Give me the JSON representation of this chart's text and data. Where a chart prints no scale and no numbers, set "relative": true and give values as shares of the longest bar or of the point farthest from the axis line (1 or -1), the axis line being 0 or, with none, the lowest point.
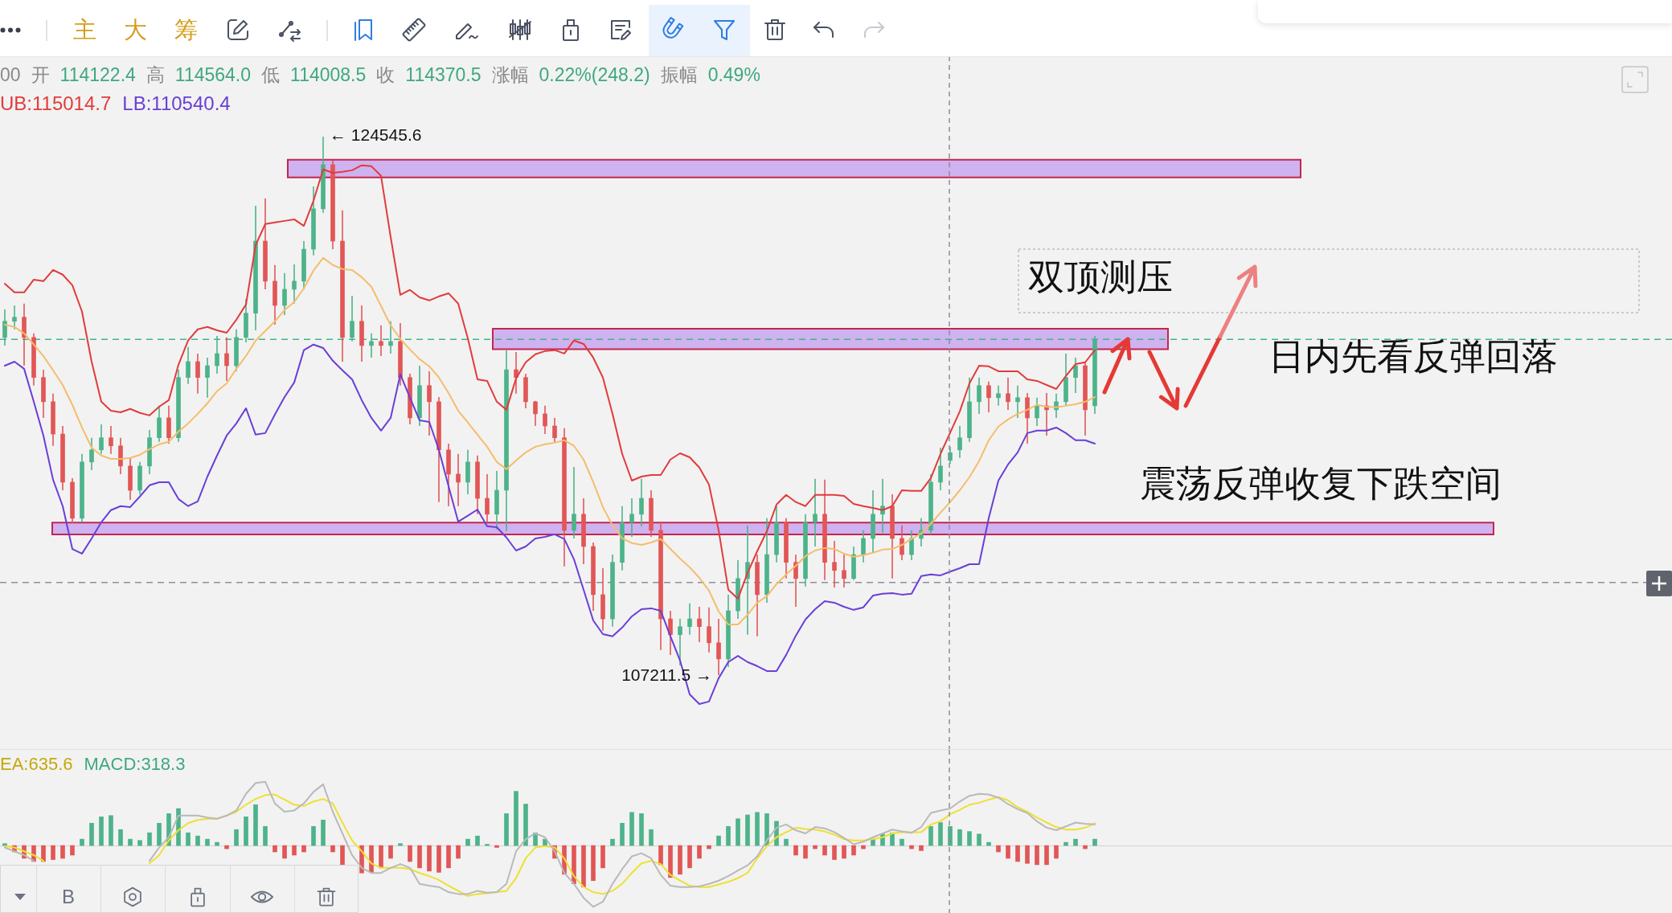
{
  "chart_data": [
    {
      "type": "candlestick",
      "subtitle": "00 开 114122.4 高 114564.0 低 114008.5 收 114370.5 涨幅 0.22%(248.2) 振幅 0.49%",
      "categories": [
        null,
        null,
        null,
        null,
        null,
        null,
        null,
        null,
        null,
        null,
        null,
        null,
        null,
        null,
        null,
        null,
        null,
        null,
        null,
        null,
        null,
        null,
        null,
        null,
        null,
        null,
        null,
        null,
        null,
        null,
        null,
        null,
        null,
        null,
        null,
        null,
        null,
        null,
        null,
        null,
        null,
        null,
        null,
        null,
        null,
        null,
        null,
        null,
        null,
        null,
        null,
        null,
        null,
        null,
        null,
        null,
        null,
        null,
        null,
        null,
        null,
        null,
        null,
        null,
        null,
        null,
        null,
        null,
        null,
        null,
        null,
        null,
        null,
        null,
        null,
        null,
        null,
        null,
        null,
        null,
        null,
        null,
        null,
        null,
        null,
        null,
        null,
        null,
        null,
        null,
        null,
        null,
        null,
        null,
        null,
        null,
        null,
        null,
        null,
        null,
        null,
        null,
        null,
        null,
        null,
        null,
        null,
        null,
        null,
        null,
        null,
        null,
        null,
        null
      ],
      "ylim": [
        104830,
        127130
      ],
      "tick_labels": false,
      "series": [
        {
          "ohlc": [
            [
              118080,
              118980,
              117820,
              118600
            ],
            [
              118600,
              119110,
              118340,
              118730
            ],
            [
              118730,
              119170,
              117170,
              118080
            ],
            [
              118080,
              118210,
              116530,
              116790
            ],
            [
              116790,
              117040,
              115490,
              116010
            ],
            [
              116010,
              116270,
              114590,
              114970
            ],
            [
              114970,
              115230,
              113160,
              113420
            ],
            [
              113420,
              113550,
              112100,
              112260
            ],
            [
              112260,
              114330,
              112130,
              114070
            ],
            [
              114070,
              114850,
              113810,
              114460
            ],
            [
              114460,
              115280,
              114330,
              114850
            ],
            [
              114850,
              115230,
              114330,
              114590
            ],
            [
              114590,
              114850,
              113680,
              113940
            ],
            [
              113940,
              114200,
              112850,
              113160
            ],
            [
              113160,
              114070,
              113030,
              113940
            ],
            [
              113940,
              115100,
              113680,
              114850
            ],
            [
              114850,
              115880,
              114720,
              115490
            ],
            [
              115490,
              115880,
              114660,
              114850
            ],
            [
              114850,
              117040,
              114720,
              116790
            ],
            [
              116790,
              117770,
              116580,
              117300
            ],
            [
              117300,
              117560,
              116270,
              116790
            ],
            [
              116790,
              117430,
              116140,
              117170
            ],
            [
              117170,
              118130,
              116910,
              117560
            ],
            [
              117560,
              118080,
              116680,
              117170
            ],
            [
              117170,
              118340,
              116990,
              118080
            ],
            [
              118080,
              119320,
              117920,
              118860
            ],
            [
              118860,
              122320,
              118310,
              121180
            ],
            [
              121180,
              122550,
              119630,
              119890
            ],
            [
              119890,
              120410,
              118490,
              119110
            ],
            [
              119110,
              120150,
              118800,
              119630
            ],
            [
              119630,
              120430,
              119170,
              119890
            ],
            [
              119890,
              121180,
              119630,
              120920
            ],
            [
              120920,
              122940,
              120720,
              122220
            ],
            [
              122220,
              124545.6,
              122090,
              123640
            ],
            [
              123640,
              123770,
              120920,
              121180
            ],
            [
              121180,
              122170,
              117300,
              118080
            ],
            [
              118080,
              119420,
              117950,
              118600
            ],
            [
              118600,
              119110,
              117300,
              117820
            ],
            [
              117820,
              118210,
              117430,
              117950
            ],
            [
              117950,
              118470,
              117480,
              117820
            ],
            [
              117820,
              118600,
              117560,
              117950
            ],
            [
              117950,
              118540,
              116530,
              116790
            ],
            [
              116790,
              116910,
              115280,
              115490
            ],
            [
              115490,
              117170,
              115230,
              116530
            ],
            [
              116530,
              116990,
              114920,
              116010
            ],
            [
              116010,
              116160,
              112780,
              114460
            ],
            [
              114460,
              114660,
              112650,
              113680
            ],
            [
              113680,
              114330,
              112650,
              113420
            ],
            [
              113420,
              114460,
              113030,
              114070
            ],
            [
              114070,
              114280,
              112390,
              112900
            ],
            [
              112900,
              113680,
              112150,
              112390
            ],
            [
              112390,
              113780,
              111900,
              113160
            ],
            [
              113160,
              117660,
              111840,
              117040
            ],
            [
              117040,
              117610,
              116270,
              116790
            ],
            [
              116790,
              116910,
              115800,
              116010
            ],
            [
              116010,
              116040,
              115230,
              115620
            ],
            [
              115620,
              115880,
              114970,
              115230
            ],
            [
              115230,
              115490,
              114720,
              114850
            ],
            [
              114850,
              115160,
              110710,
              111870
            ],
            [
              111870,
              113910,
              111610,
              112390
            ],
            [
              112390,
              112900,
              110780,
              111350
            ],
            [
              111350,
              111480,
              109280,
              109800
            ],
            [
              109800,
              110650,
              108640,
              109020
            ],
            [
              109020,
              111090,
              108770,
              110840
            ],
            [
              110840,
              112650,
              110580,
              112130
            ],
            [
              112130,
              112900,
              111660,
              112390
            ],
            [
              112390,
              113530,
              112000,
              112900
            ],
            [
              112900,
              113160,
              111660,
              111870
            ],
            [
              111870,
              112130,
              108020,
              109020
            ],
            [
              109020,
              109280,
              107860,
              108510
            ],
            [
              108510,
              109020,
              107520,
              108770
            ],
            [
              108770,
              109520,
              108510,
              109020
            ],
            [
              109020,
              109410,
              108270,
              108770
            ],
            [
              108770,
              109390,
              107940,
              108250
            ],
            [
              108250,
              109020,
              107211.5,
              107730
            ],
            [
              107730,
              109800,
              107470,
              109280
            ],
            [
              109280,
              110910,
              109020,
              110320
            ],
            [
              110320,
              112030,
              108510,
              110840
            ],
            [
              110840,
              111090,
              108460,
              109800
            ],
            [
              109800,
              112260,
              109540,
              111090
            ],
            [
              111090,
              112650,
              110840,
              112130
            ],
            [
              112130,
              112260,
              110320,
              110840
            ],
            [
              110840,
              111090,
              109410,
              110320
            ],
            [
              110320,
              112390,
              110060,
              112130
            ],
            [
              112130,
              113530,
              111350,
              112390
            ],
            [
              112390,
              113500,
              110270,
              110840
            ],
            [
              110840,
              111530,
              110030,
              110580
            ],
            [
              110580,
              111090,
              110030,
              110320
            ],
            [
              110320,
              111350,
              110270,
              111090
            ],
            [
              111090,
              111870,
              110840,
              111610
            ],
            [
              111610,
              113160,
              111150,
              112390
            ],
            [
              112390,
              113530,
              111790,
              112650
            ],
            [
              112650,
              113030,
              110320,
              111610
            ],
            [
              111610,
              112030,
              110910,
              111090
            ],
            [
              111090,
              111870,
              110910,
              111610
            ],
            [
              111610,
              112260,
              111350,
              111870
            ],
            [
              111870,
              113680,
              111740,
              113420
            ],
            [
              113420,
              114530,
              113160,
              113940
            ],
            [
              114122.4,
              114564.0,
              114008.5,
              114370.5
            ],
            [
              114460,
              115230,
              114200,
              114850
            ],
            [
              114850,
              116790,
              114720,
              116010
            ],
            [
              116010,
              116790,
              115620,
              116530
            ],
            [
              116530,
              116660,
              115670,
              116140
            ],
            [
              116140,
              116530,
              115880,
              116270
            ],
            [
              116270,
              116790,
              115750,
              116010
            ],
            [
              116010,
              116530,
              115490,
              116140
            ],
            [
              116140,
              116290,
              114660,
              115490
            ],
            [
              115490,
              116140,
              115230,
              115880
            ],
            [
              115880,
              116290,
              114920,
              115750
            ],
            [
              115750,
              116270,
              115490,
              116010
            ],
            [
              116010,
              117560,
              115880,
              116790
            ],
            [
              116790,
              117430,
              116290,
              117170
            ],
            [
              117170,
              117300,
              114920,
              115750
            ],
            [
              115880,
              118130,
              115620,
              118020
            ]
          ],
          "colors": [
            "#4db38a",
            "#4db38a",
            "#e25656",
            "#e25656",
            "#e25656",
            "#e25656",
            "#e25656",
            "#e25656",
            "#4db38a",
            "#4db38a",
            "#4db38a",
            "#e25656",
            "#e25656",
            "#e25656",
            "#4db38a",
            "#4db38a",
            "#4db38a",
            "#e25656",
            "#4db38a",
            "#4db38a",
            "#e25656",
            "#4db38a",
            "#4db38a",
            "#e25656",
            "#4db38a",
            "#4db38a",
            "#4db38a",
            "#e25656",
            "#e25656",
            "#4db38a",
            "#4db38a",
            "#4db38a",
            "#4db38a",
            "#4db38a",
            "#e25656",
            "#e25656",
            "#4db38a",
            "#e25656",
            "#4db38a",
            "#e25656",
            "#4db38a",
            "#e25656",
            "#e25656",
            "#4db38a",
            "#e25656",
            "#e25656",
            "#e25656",
            "#e25656",
            "#4db38a",
            "#e25656",
            "#e25656",
            "#4db38a",
            "#4db38a",
            "#e25656",
            "#e25656",
            "#e25656",
            "#e25656",
            "#e25656",
            "#e25656",
            "#4db38a",
            "#e25656",
            "#e25656",
            "#e25656",
            "#4db38a",
            "#4db38a",
            "#4db38a",
            "#4db38a",
            "#e25656",
            "#e25656",
            "#e25656",
            "#4db38a",
            "#4db38a",
            "#e25656",
            "#e25656",
            "#e25656",
            "#4db38a",
            "#4db38a",
            "#4db38a",
            "#e25656",
            "#4db38a",
            "#4db38a",
            "#e25656",
            "#e25656",
            "#4db38a",
            "#4db38a",
            "#e25656",
            "#e25656",
            "#e25656",
            "#4db38a",
            "#4db38a",
            "#4db38a",
            "#4db38a",
            "#e25656",
            "#e25656",
            "#4db38a",
            "#4db38a",
            "#4db38a",
            "#4db38a",
            "#4db38a",
            "#4db38a",
            "#4db38a",
            "#4db38a",
            "#e25656",
            "#4db38a",
            "#e25656",
            "#4db38a",
            "#e25656",
            "#4db38a",
            "#e25656",
            "#4db38a",
            "#4db38a",
            "#4db38a",
            "#e25656",
            "#4db38a"
          ]
        },
        {
          "type": "line",
          "color": "#e23b3b",
          "values": [
            119810,
            119530,
            119530,
            119940,
            119890,
            120250,
            120100,
            119760,
            118910,
            117300,
            116010,
            115720,
            115670,
            115780,
            115650,
            115570,
            115850,
            116060,
            117200,
            117980,
            118340,
            118420,
            118310,
            118230,
            118650,
            119140,
            121050,
            121730,
            121780,
            121830,
            121880,
            121670,
            122480,
            123490,
            123380,
            123410,
            123460,
            123620,
            123590,
            123280,
            121310,
            119450,
            119610,
            119370,
            119270,
            119400,
            119500,
            119170,
            118050,
            116730,
            116680,
            116010,
            115750,
            116760,
            117280,
            117540,
            117640,
            117670,
            117560,
            117980,
            117870,
            117430,
            116790,
            115620,
            114330,
            113470,
            113600,
            113650,
            113650,
            114150,
            114350,
            114220,
            113890,
            113340,
            111870,
            109960,
            109670,
            110500,
            111200,
            111840,
            112700,
            113010,
            112780,
            112650,
            113010,
            113010,
            113010,
            112980,
            112720,
            112650,
            112590,
            112520,
            112650,
            113160,
            113140,
            113140,
            113550,
            114330,
            115014.7,
            115700,
            116600,
            117170,
            117150,
            116990,
            116990,
            116990,
            116730,
            116680,
            116550,
            116420,
            116840,
            117220,
            117280,
            117670
          ]
        },
        {
          "type": "line",
          "color": "#f5bd6b",
          "values": [
            118490,
            118420,
            118210,
            117850,
            117480,
            117020,
            116550,
            115910,
            115180,
            114530,
            114280,
            114170,
            114170,
            114200,
            114300,
            114480,
            114640,
            114720,
            115050,
            115310,
            115620,
            115960,
            116350,
            116600,
            117070,
            117480,
            117980,
            118290,
            118600,
            118960,
            119220,
            119660,
            120230,
            120640,
            120410,
            120280,
            120250,
            120020,
            119710,
            119090,
            118470,
            118030,
            117690,
            117380,
            117150,
            116790,
            116290,
            115720,
            115340,
            114950,
            114560,
            114070,
            113840,
            114120,
            114380,
            114560,
            114640,
            114690,
            114770,
            114590,
            114150,
            113420,
            112620,
            112030,
            111610,
            111460,
            111400,
            111480,
            111590,
            111270,
            110960,
            110680,
            110340,
            109930,
            109260,
            108840,
            108840,
            109150,
            109540,
            109750,
            110140,
            110450,
            110730,
            111040,
            111220,
            111300,
            111270,
            111120,
            111020,
            111070,
            111150,
            111250,
            111270,
            111400,
            111590,
            111770,
            112080,
            112440,
            112780,
            113160,
            113580,
            114100,
            114770,
            115210,
            115440,
            115620,
            115750,
            115910,
            115850,
            115830,
            115880,
            115930,
            116010,
            116160
          ]
        },
        {
          "type": "line",
          "color": "#6a3fd6",
          "values": [
            117170,
            117300,
            117070,
            116010,
            114920,
            113500,
            112650,
            111270,
            111120,
            111610,
            112130,
            112520,
            112650,
            112620,
            112960,
            113320,
            113420,
            113420,
            112880,
            112650,
            112800,
            113600,
            114280,
            114920,
            115310,
            115800,
            114950,
            115000,
            115600,
            116160,
            116630,
            117670,
            117850,
            117740,
            117330,
            117020,
            116730,
            116060,
            115490,
            115080,
            115490,
            116890,
            116140,
            115410,
            115360,
            114460,
            113290,
            112150,
            112340,
            112540,
            112000,
            111970,
            111640,
            111220,
            111350,
            111610,
            111660,
            111740,
            111590,
            110940,
            109960,
            108970,
            108530,
            108460,
            108740,
            109100,
            109330,
            109360,
            109280,
            108460,
            107680,
            106590,
            106280,
            106360,
            107110,
            107630,
            107830,
            107630,
            107500,
            107340,
            107340,
            107860,
            108480,
            109000,
            109330,
            109590,
            109540,
            109410,
            109310,
            109390,
            109770,
            109830,
            109850,
            109800,
            109830,
            110400,
            110450,
            110420,
            110540.4,
            110650,
            110780,
            110780,
            112260,
            113470,
            113990,
            114380,
            115000,
            115080,
            115080,
            115180,
            115000,
            114770,
            114770,
            114660
          ]
        }
      ],
      "bands": [
        {
          "axis": "y",
          "from": 123230,
          "to": 123800,
          "color": "#cfb2f0"
        },
        {
          "axis": "y",
          "from": 117700,
          "to": 118360,
          "color": "#cfb2f0"
        },
        {
          "axis": "y",
          "from": 111740,
          "to": 112120,
          "color": "#cfb2f0"
        }
      ],
      "ref_lines": [
        {
          "axis": "y",
          "value": 118020,
          "color": "#3fb58a",
          "line_style": "dashed"
        },
        {
          "axis": "y",
          "value": 110190,
          "color": "#8a8f9a",
          "line_style": "dashed"
        }
      ],
      "annotations": [
        "主",
        "大",
        "筹",
        "UB:115014.7",
        "LB:110540.4",
        "← 124545.6",
        "107211.5 →",
        "双顶测压",
        "日内先看反弹回落",
        "震荡反弹收复下跌空间"
      ]
    },
    {
      "type": "bar",
      "relative": true,
      "tick_labels": false,
      "categories": [
        null,
        null,
        null,
        null,
        null,
        null,
        null,
        null,
        null,
        null,
        null,
        null,
        null,
        null,
        null,
        null,
        null,
        null,
        null,
        null,
        null,
        null,
        null,
        null,
        null,
        null,
        null,
        null,
        null,
        null,
        null,
        null,
        null,
        null,
        null,
        null,
        null,
        null,
        null,
        null,
        null,
        null,
        null,
        null,
        null,
        null,
        null,
        null,
        null,
        null,
        null,
        null,
        null,
        null,
        null,
        null,
        null,
        null,
        null,
        null,
        null,
        null,
        null,
        null,
        null,
        null,
        null,
        null,
        null,
        null,
        null,
        null,
        null,
        null,
        null,
        null,
        null,
        null,
        null,
        null,
        null,
        null,
        null,
        null,
        null,
        null,
        null,
        null,
        null,
        null,
        null,
        null,
        null,
        null,
        null,
        null,
        null,
        null,
        null,
        null,
        null,
        null,
        null,
        null,
        null,
        null,
        null,
        null,
        null,
        null,
        null,
        null,
        null,
        null
      ],
      "series": [
        {
          "values": [
            0.03,
            -0.1,
            -0.2,
            -0.25,
            -0.25,
            -0.22,
            -0.2,
            -0.15,
            0.1,
            0.35,
            0.45,
            0.47,
            0.25,
            0.1,
            0.08,
            0.2,
            0.35,
            0.5,
            0.58,
            0.2,
            0.15,
            0.1,
            0.05,
            -0.05,
            0.25,
            0.45,
            0.64,
            0.3,
            -0.1,
            -0.2,
            -0.15,
            -0.1,
            0.3,
            0.4,
            -0.1,
            -0.3,
            null,
            -0.43,
            -0.42,
            -0.35,
            -0.2,
            0.03,
            -0.25,
            -0.35,
            -0.4,
            -0.42,
            -0.35,
            -0.2,
            0.1,
            0.15,
            0.02,
            -0.03,
            0.5,
            0.85,
            0.65,
            0.2,
            0.1,
            -0.2,
            -0.45,
            -0.6,
            -0.65,
            -0.55,
            -0.35,
            0.1,
            0.35,
            0.52,
            0.5,
            0.25,
            -0.3,
            -0.5,
            -0.45,
            -0.35,
            -0.2,
            -0.05,
            0.15,
            0.3,
            0.42,
            0.48,
            0.52,
            0.5,
            0.38,
            0.1,
            -0.15,
            -0.2,
            -0.05,
            -0.15,
            -0.22,
            -0.2,
            -0.15,
            -0.05,
            0.1,
            0.18,
            0.2,
            0.1,
            -0.05,
            -0.08,
            0.3,
            0.36,
            0.3,
            0.25,
            0.22,
            0.18,
            0.05,
            -0.1,
            -0.2,
            -0.25,
            -0.28,
            -0.3,
            -0.3,
            -0.2,
            0.05,
            0.1,
            -0.05,
            0.1
          ],
          "colors": [
            "#4db38a",
            "#e25656",
            "#e25656",
            "#e25656",
            "#e25656",
            "#e25656",
            "#e25656",
            "#e25656",
            "#4db38a",
            "#4db38a",
            "#4db38a",
            "#4db38a",
            "#4db38a",
            "#4db38a",
            "#4db38a",
            "#4db38a",
            "#4db38a",
            "#4db38a",
            "#4db38a",
            "#4db38a",
            "#4db38a",
            "#4db38a",
            "#4db38a",
            "#e25656",
            "#4db38a",
            "#4db38a",
            "#4db38a",
            "#4db38a",
            "#e25656",
            "#e25656",
            "#e25656",
            "#e25656",
            "#4db38a",
            "#4db38a",
            "#e25656",
            "#e25656",
            "#e25656",
            "#e25656",
            "#e25656",
            "#e25656",
            "#e25656",
            "#4db38a",
            "#e25656",
            "#e25656",
            "#e25656",
            "#e25656",
            "#e25656",
            "#e25656",
            "#4db38a",
            "#4db38a",
            "#4db38a",
            "#e25656",
            "#4db38a",
            "#4db38a",
            "#4db38a",
            "#4db38a",
            "#4db38a",
            "#e25656",
            "#e25656",
            "#e25656",
            "#e25656",
            "#e25656",
            "#e25656",
            "#4db38a",
            "#4db38a",
            "#4db38a",
            "#4db38a",
            "#4db38a",
            "#e25656",
            "#e25656",
            "#e25656",
            "#e25656",
            "#e25656",
            "#e25656",
            "#4db38a",
            "#4db38a",
            "#4db38a",
            "#4db38a",
            "#4db38a",
            "#4db38a",
            "#4db38a",
            "#4db38a",
            "#e25656",
            "#e25656",
            "#e25656",
            "#e25656",
            "#e25656",
            "#e25656",
            "#e25656",
            "#e25656",
            "#4db38a",
            "#4db38a",
            "#4db38a",
            "#4db38a",
            "#e25656",
            "#e25656",
            "#4db38a",
            "#4db38a",
            "#4db38a",
            "#4db38a",
            "#4db38a",
            "#4db38a",
            "#4db38a",
            "#e25656",
            "#e25656",
            "#e25656",
            "#e25656",
            "#e25656",
            "#e25656",
            "#e25656",
            "#4db38a",
            "#4db38a",
            "#e25656",
            "#4db38a"
          ]
        },
        {
          "type": "line",
          "color": "#b9b9b9",
          "values": [
            -0.03,
            -0.09,
            -0.15,
            -0.24,
            null,
            null,
            null,
            null,
            null,
            null,
            null,
            null,
            null,
            null,
            null,
            -0.24,
            -0.03,
            0.13,
            0.47,
            0.47,
            0.47,
            0.44,
            0.42,
            0.47,
            0.55,
            0.81,
            0.98,
            1,
            0.66,
            0.53,
            0.55,
            0.66,
            0.84,
            0.96,
            0.53,
            0.19,
            -0.15,
            -0.35,
            -0.43,
            -0.43,
            -0.35,
            -0.29,
            -0.35,
            -0.6,
            -0.63,
            -0.65,
            -0.73,
            -0.76,
            -0.76,
            -0.71,
            -0.74,
            -0.73,
            -0.6,
            -0.09,
            0.1,
            0.19,
            0.13,
            -0.09,
            -0.43,
            -0.6,
            -0.82,
            -0.96,
            -0.88,
            -0.6,
            -0.37,
            -0.17,
            -0.12,
            -0.2,
            -0.46,
            -0.63,
            -0.65,
            -0.65,
            -0.64,
            -0.6,
            -0.55,
            -0.48,
            -0.39,
            -0.31,
            -0.17,
            0.08,
            0.28,
            0.33,
            0.24,
            0.19,
            0.29,
            0.27,
            0.21,
            0.12,
            0.02,
            0.06,
            0.13,
            0.19,
            0.25,
            0.22,
            0.2,
            0.29,
            0.51,
            0.55,
            0.58,
            0.69,
            0.78,
            0.81,
            0.8,
            0.75,
            0.65,
            0.57,
            0.51,
            0.38,
            0.28,
            0.24,
            0.3,
            0.36,
            0.34,
            0.33
          ]
        },
        {
          "type": "line",
          "color": "#efe030",
          "values": [
            -0.01,
            -0.03,
            -0.09,
            -0.15,
            -0.24,
            null,
            null,
            null,
            null,
            null,
            null,
            null,
            null,
            null,
            null,
            -0.28,
            -0.15,
            0.08,
            0.24,
            0.35,
            0.4,
            0.42,
            0.42,
            0.47,
            0.53,
            0.64,
            0.73,
            0.79,
            0.8,
            0.72,
            0.64,
            0.62,
            0.69,
            0.73,
            0.66,
            0.36,
            0.08,
            -0.09,
            -0.28,
            -0.35,
            -0.35,
            -0.35,
            -0.37,
            -0.43,
            -0.48,
            -0.54,
            -0.63,
            -0.71,
            -0.79,
            -0.76,
            -0.75,
            -0.73,
            -0.71,
            -0.51,
            -0.2,
            -0.03,
            -0.01,
            -0.03,
            -0.2,
            -0.48,
            -0.65,
            -0.73,
            -0.76,
            -0.71,
            -0.6,
            -0.43,
            -0.28,
            -0.24,
            -0.29,
            -0.46,
            -0.55,
            -0.63,
            -0.65,
            -0.65,
            -0.61,
            -0.57,
            -0.51,
            -0.43,
            -0.2,
            -0.01,
            0.13,
            0.21,
            0.28,
            0.26,
            0.25,
            0.22,
            0.17,
            0.1,
            0.08,
            0.08,
            0.1,
            0.13,
            0.19,
            0.21,
            0.21,
            0.21,
            0.33,
            0.38,
            0.49,
            0.56,
            0.64,
            0.67,
            0.72,
            0.76,
            0.71,
            0.6,
            0.53,
            0.44,
            0.36,
            0.29,
            0.25,
            0.25,
            0.28,
            0.35
          ]
        }
      ],
      "annotations": [
        "EA:635.6",
        "MACD:318.3",
        "B"
      ]
    }
  ]
}
